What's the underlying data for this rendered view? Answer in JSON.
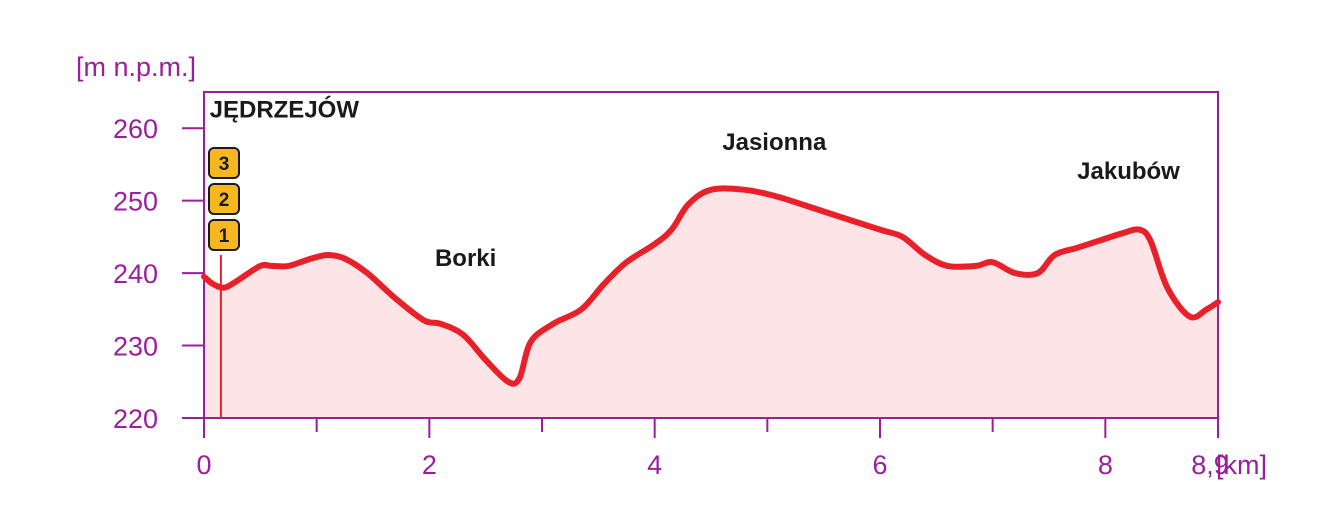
{
  "chart_data": {
    "type": "area",
    "ylabel": "[m n.p.m.]",
    "xlabel": "[km]",
    "xlim": [
      0,
      9
    ],
    "ylim": [
      220,
      265
    ],
    "x_ticks": [
      0,
      2,
      4,
      6,
      8,
      8.9
    ],
    "x_tick_labels": [
      "0",
      "2",
      "4",
      "6",
      "8",
      "8,9"
    ],
    "x_minor_ticks": [
      1,
      3,
      5,
      7
    ],
    "y_ticks": [
      220,
      230,
      240,
      250,
      260
    ],
    "y_tick_labels": [
      "220",
      "230",
      "240",
      "250",
      "260"
    ],
    "grid": false,
    "colors": {
      "axis": "#9b1f9b",
      "line": "#e8202a",
      "fill": "#fde4e6",
      "marker_fill": "#f5b820"
    },
    "series": [
      {
        "x": [
          0,
          0.08,
          0.18,
          0.3,
          0.5,
          0.6,
          0.75,
          0.95,
          1.1,
          1.25,
          1.45,
          1.7,
          1.95,
          2.1,
          2.3,
          2.5,
          2.7,
          2.8,
          2.9,
          3.1,
          3.35,
          3.55,
          3.75,
          4.0,
          4.15,
          4.3,
          4.5,
          4.8,
          5.1,
          5.5,
          6.0,
          6.2,
          6.4,
          6.6,
          6.85,
          7.0,
          7.2,
          7.4,
          7.55,
          7.75,
          7.95,
          8.15,
          8.3,
          8.4,
          8.55,
          8.75,
          8.9,
          9.0
        ],
        "values": [
          239.5,
          238.5,
          238.0,
          239.0,
          241.0,
          241.0,
          241.0,
          242.0,
          242.5,
          242.0,
          240.0,
          236.5,
          233.5,
          233.0,
          231.5,
          228.0,
          225.0,
          225.5,
          230.5,
          233.0,
          235.0,
          238.5,
          241.5,
          244.0,
          246.0,
          249.5,
          251.5,
          251.5,
          250.5,
          248.5,
          246.0,
          245.0,
          242.5,
          241.0,
          241.0,
          241.5,
          240.0,
          240.0,
          242.5,
          243.5,
          244.5,
          245.5,
          246.0,
          244.5,
          238.0,
          234.0,
          235.0,
          236.0
        ]
      }
    ],
    "places": [
      {
        "name": "JĘDRZEJÓW",
        "x": 0.05,
        "y": 261.5
      },
      {
        "name": "Borki",
        "x": 2.05,
        "y": 241.0
      },
      {
        "name": "Jasionna",
        "x": 4.6,
        "y": 257.0
      },
      {
        "name": "Jakubów",
        "x": 7.75,
        "y": 253.0
      }
    ],
    "marker_x": 0.15,
    "marker_y_from": 220,
    "marker_y_to": 242.5,
    "markers": [
      "3",
      "2",
      "1"
    ]
  }
}
